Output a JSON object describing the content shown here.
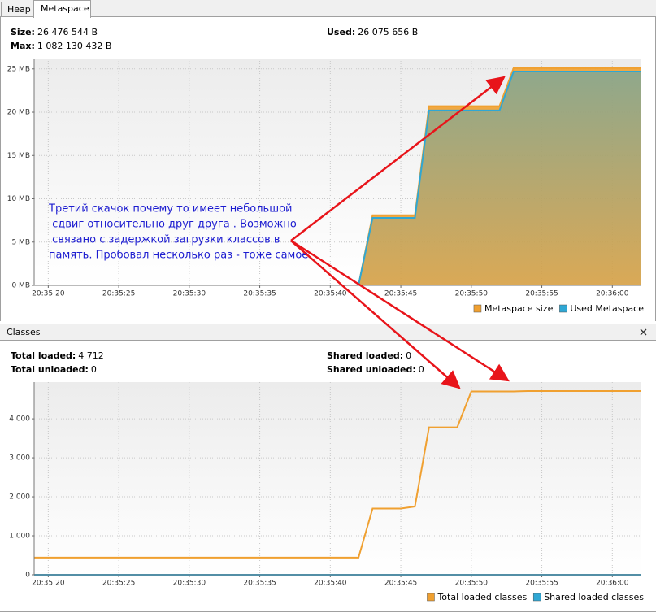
{
  "tabs": [
    "Heap",
    "Metaspace"
  ],
  "metaspace_info": {
    "size_label": "Size:",
    "size": "26 476 544 B",
    "used_label": "Used:",
    "used": "26 075 656 B",
    "max_label": "Max:",
    "max": "1 082 130 432 B"
  },
  "classes_panel": {
    "title": "Classes",
    "total_loaded_label": "Total loaded:",
    "total_loaded": "4 712",
    "total_unloaded_label": "Total unloaded:",
    "total_unloaded": "0",
    "shared_loaded_label": "Shared loaded:",
    "shared_loaded": "0",
    "shared_unloaded_label": "Shared unloaded:",
    "shared_unloaded": "0"
  },
  "chart_data": [
    {
      "type": "area",
      "xlim": [
        "20:35:19",
        "20:36:02"
      ],
      "xticks": [
        "20:35:20",
        "20:35:25",
        "20:35:30",
        "20:35:35",
        "20:35:40",
        "20:35:45",
        "20:35:50",
        "20:35:55",
        "20:36:00"
      ],
      "ylim": [
        0,
        26.2
      ],
      "yticks": [
        {
          "value": 0,
          "label": "0 MB"
        },
        {
          "value": 5,
          "label": "5 MB"
        },
        {
          "value": 10,
          "label": "10 MB"
        },
        {
          "value": 15,
          "label": "15 MB"
        },
        {
          "value": 20,
          "label": "20 MB"
        },
        {
          "value": 25,
          "label": "25 MB"
        }
      ],
      "grid": true,
      "legend": "bottom-right",
      "series": [
        {
          "name": "Metaspace size",
          "color": "#f0a030",
          "x": [
            "20:35:42",
            "20:35:43",
            "20:35:46",
            "20:35:47",
            "20:35:52",
            "20:35:53",
            "20:36:02"
          ],
          "values": [
            0,
            8.1,
            8.1,
            20.7,
            20.7,
            25.1,
            25.1
          ]
        },
        {
          "name": "Used Metaspace",
          "color": "#2fa7d4",
          "x": [
            "20:35:42",
            "20:35:43",
            "20:35:46",
            "20:35:47",
            "20:35:52",
            "20:35:53",
            "20:36:02"
          ],
          "values": [
            0,
            7.8,
            7.8,
            20.2,
            20.2,
            24.7,
            24.7
          ]
        }
      ],
      "annotation": [
        "Третий скачок почему то имеет небольшой",
        " сдвиг относительно друг друга . Возможно",
        " связано с задержкой загрузки классов в",
        "память. Пробовал несколько раз - тоже самое"
      ]
    },
    {
      "type": "line",
      "xlim": [
        "20:35:19",
        "20:36:02"
      ],
      "xticks": [
        "20:35:20",
        "20:35:25",
        "20:35:30",
        "20:35:35",
        "20:35:40",
        "20:35:45",
        "20:35:50",
        "20:35:55",
        "20:36:00"
      ],
      "ylim": [
        0,
        4940
      ],
      "yticks": [
        0,
        {
          "value": 1000,
          "label": "1 000"
        },
        {
          "value": 2000,
          "label": "2 000"
        },
        {
          "value": 3000,
          "label": "3 000"
        },
        {
          "value": 4000,
          "label": "4 000"
        }
      ],
      "grid": true,
      "legend": "bottom-right",
      "series": [
        {
          "name": "Total loaded classes",
          "color": "#f0a030",
          "x": [
            "20:35:19",
            "20:35:42",
            "20:35:43",
            "20:35:45",
            "20:35:46",
            "20:35:47",
            "20:35:49",
            "20:35:50",
            "20:35:53",
            "20:35:54",
            "20:36:02"
          ],
          "values": [
            440,
            440,
            1700,
            1700,
            1750,
            3780,
            3780,
            4700,
            4700,
            4712,
            4712
          ]
        },
        {
          "name": "Shared loaded classes",
          "color": "#2fa7d4",
          "x": [
            "20:35:19",
            "20:36:02"
          ],
          "values": [
            0,
            0
          ]
        }
      ]
    }
  ]
}
